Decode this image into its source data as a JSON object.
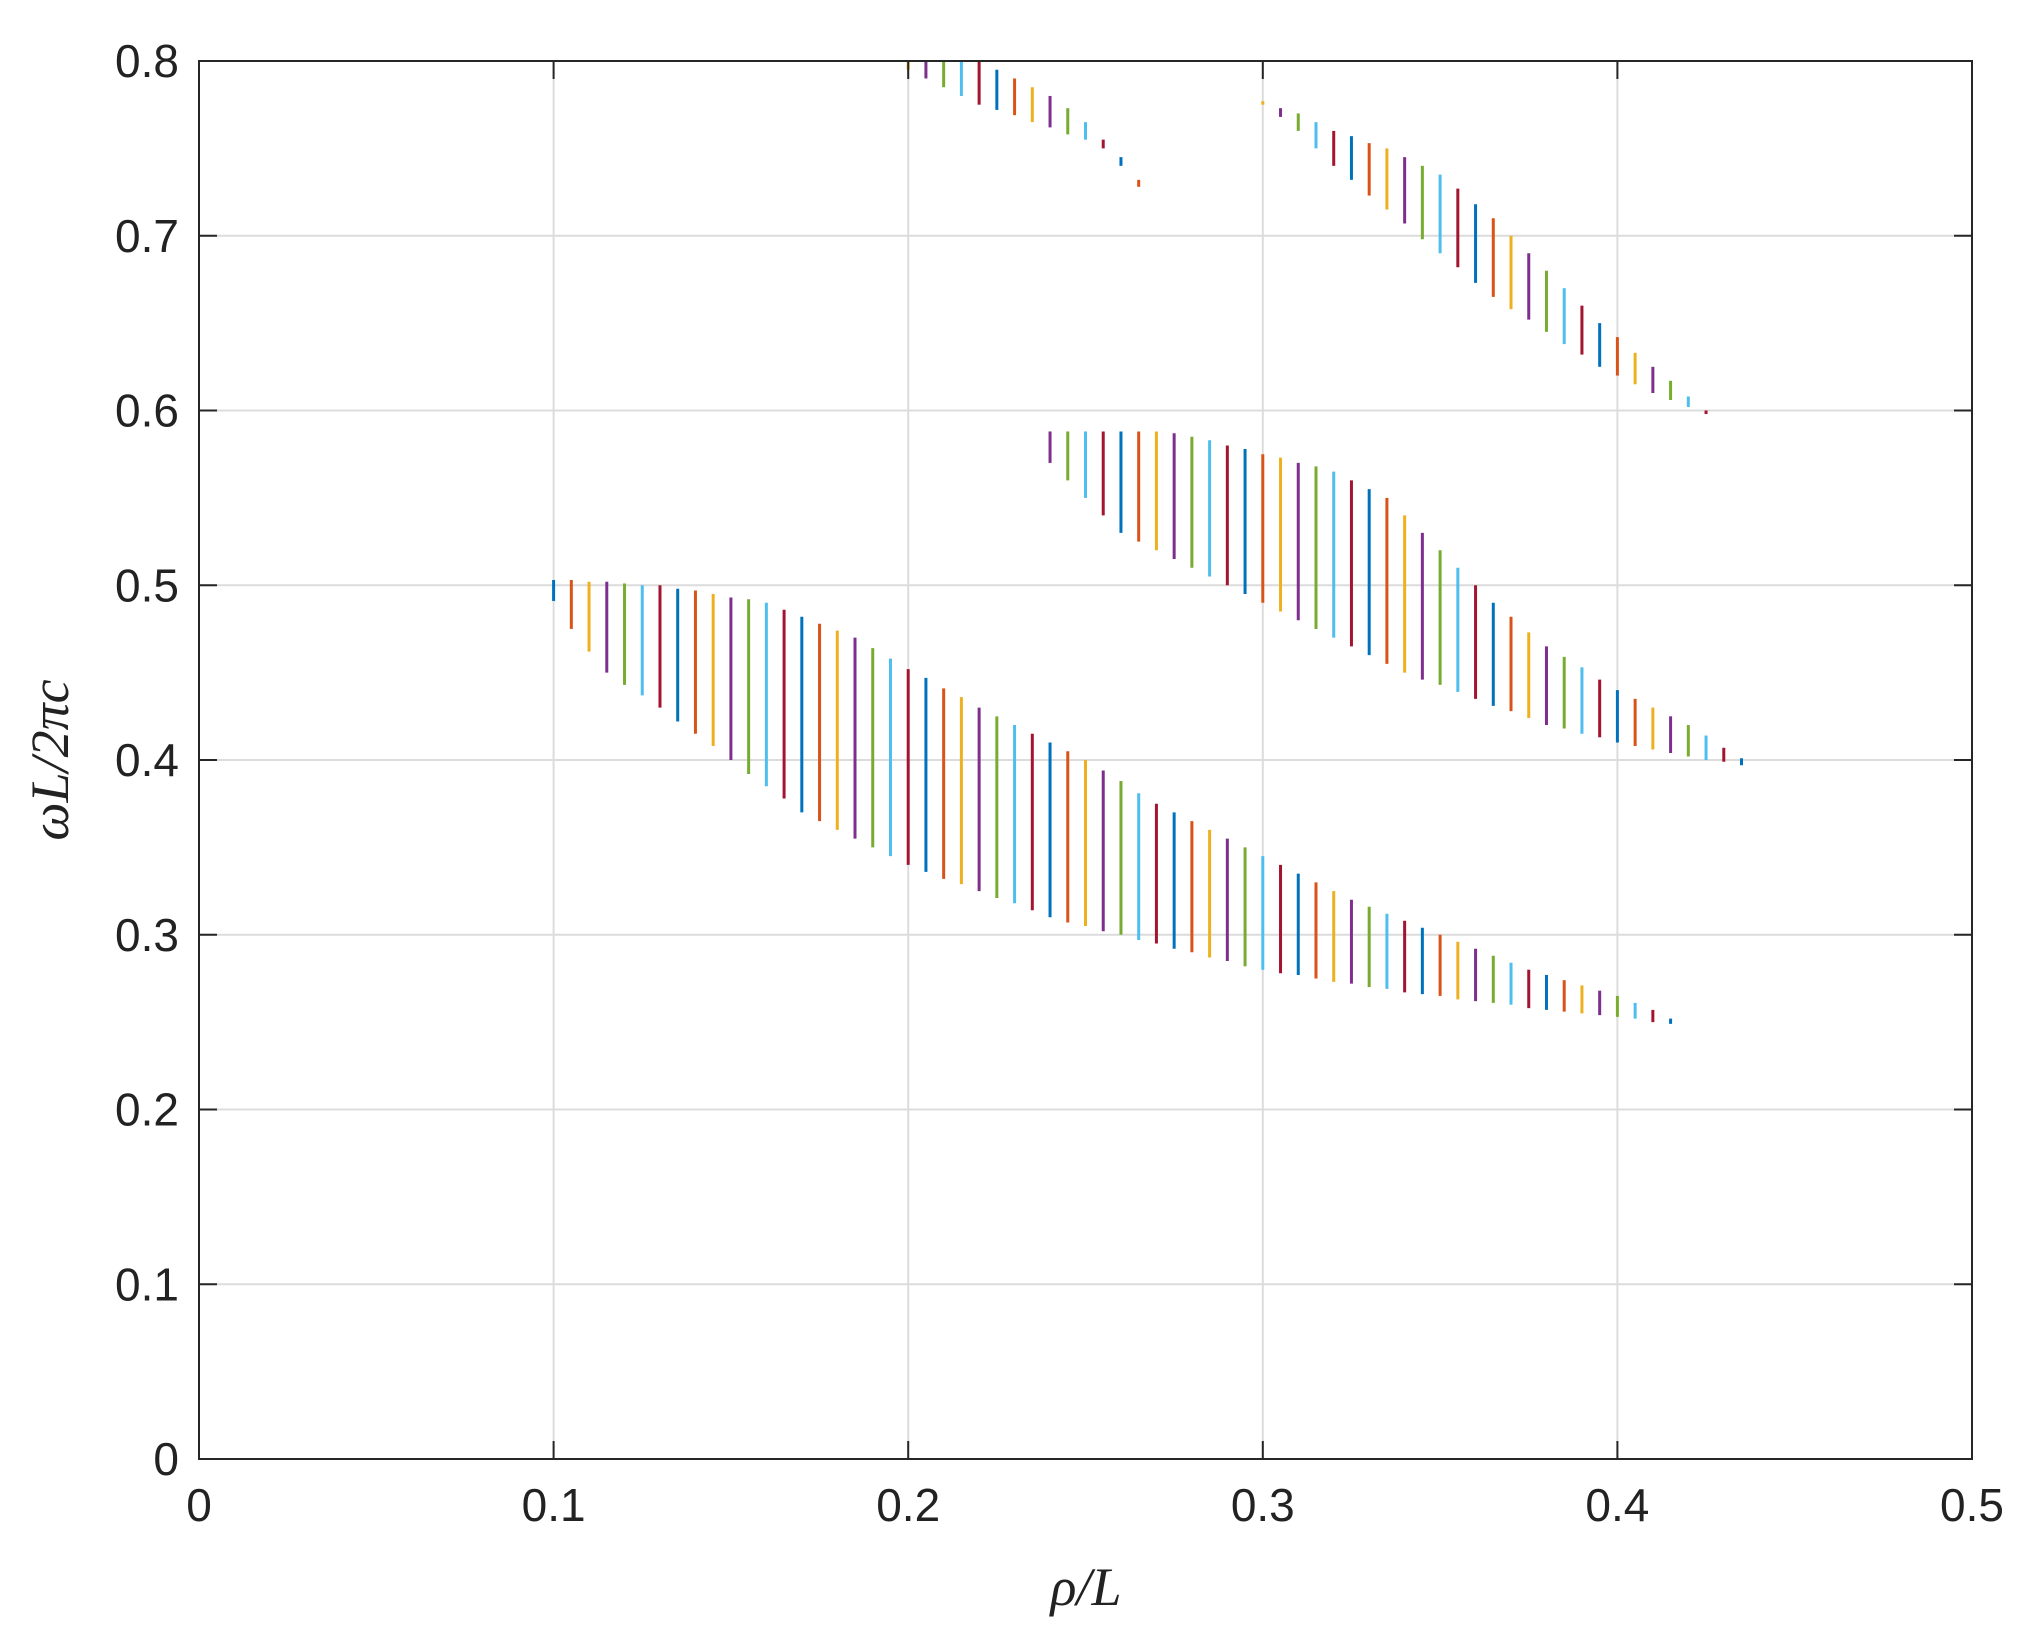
{
  "chart_data": {
    "type": "bandgap",
    "xlabel": "ρ/L",
    "ylabel": "ωL/2πc",
    "xlim": [
      0,
      0.5
    ],
    "ylim": [
      0,
      0.8
    ],
    "xticks": [
      0,
      0.1,
      0.2,
      0.3,
      0.4,
      0.5
    ],
    "yticks": [
      0,
      0.1,
      0.2,
      0.3,
      0.4,
      0.5,
      0.6,
      0.7,
      0.8
    ],
    "grid": true,
    "colors": [
      "#0072BD",
      "#D95319",
      "#EDB120",
      "#7E2F8E",
      "#77AC30",
      "#4DBEEE",
      "#A2142F"
    ],
    "series": [
      {
        "x": [
          0.1,
          0.105,
          0.11,
          0.115,
          0.12,
          0.125,
          0.13,
          0.135,
          0.14,
          0.145,
          0.15,
          0.155,
          0.16,
          0.165,
          0.17,
          0.175,
          0.18,
          0.185,
          0.19,
          0.195,
          0.2,
          0.205,
          0.21,
          0.215,
          0.22,
          0.225,
          0.23,
          0.235,
          0.24,
          0.245,
          0.25,
          0.255,
          0.26,
          0.265,
          0.27,
          0.275,
          0.28,
          0.285,
          0.29,
          0.295,
          0.3,
          0.305,
          0.31,
          0.315,
          0.32,
          0.325,
          0.33,
          0.335,
          0.34,
          0.345,
          0.35,
          0.355,
          0.36,
          0.365,
          0.37,
          0.375,
          0.38,
          0.385,
          0.39,
          0.395,
          0.4,
          0.405,
          0.41,
          0.415,
          0.42
        ],
        "high": [
          0.503,
          0.503,
          0.502,
          0.502,
          0.501,
          0.5,
          0.5,
          0.498,
          0.497,
          0.495,
          0.493,
          0.492,
          0.49,
          0.486,
          0.482,
          0.478,
          0.474,
          0.47,
          0.464,
          0.458,
          0.452,
          0.447,
          0.441,
          0.436,
          0.43,
          0.425,
          0.42,
          0.415,
          0.41,
          0.405,
          0.4,
          0.394,
          0.388,
          0.381,
          0.375,
          0.37,
          0.365,
          0.36,
          0.355,
          0.35,
          0.345,
          0.34,
          0.335,
          0.33,
          0.325,
          0.32,
          0.316,
          0.312,
          0.308,
          0.304,
          0.3,
          0.296,
          0.292,
          0.288,
          0.284,
          0.28,
          0.277,
          0.274,
          0.271,
          0.268,
          0.265,
          0.261,
          0.257,
          0.252,
          0.248
        ],
        "low": [
          0.491,
          0.475,
          0.462,
          0.45,
          0.443,
          0.437,
          0.43,
          0.422,
          0.415,
          0.408,
          0.4,
          0.392,
          0.385,
          0.378,
          0.37,
          0.365,
          0.36,
          0.355,
          0.35,
          0.345,
          0.34,
          0.336,
          0.332,
          0.329,
          0.325,
          0.321,
          0.318,
          0.314,
          0.31,
          0.307,
          0.305,
          0.302,
          0.3,
          0.297,
          0.295,
          0.292,
          0.29,
          0.287,
          0.285,
          0.282,
          0.28,
          0.278,
          0.277,
          0.275,
          0.273,
          0.272,
          0.27,
          0.269,
          0.267,
          0.266,
          0.265,
          0.263,
          0.262,
          0.261,
          0.26,
          0.258,
          0.257,
          0.256,
          0.255,
          0.254,
          0.253,
          0.252,
          0.25,
          0.249,
          0.248
        ]
      },
      {
        "x": [
          0.235,
          0.24,
          0.245,
          0.25,
          0.255,
          0.26,
          0.265,
          0.27,
          0.275,
          0.28,
          0.285,
          0.29,
          0.295,
          0.3,
          0.305,
          0.31,
          0.315,
          0.32,
          0.325,
          0.33,
          0.335,
          0.34,
          0.345,
          0.35,
          0.355,
          0.36,
          0.365,
          0.37,
          0.375,
          0.38,
          0.385,
          0.39,
          0.395,
          0.4,
          0.405,
          0.41,
          0.415,
          0.42,
          0.425,
          0.43,
          0.435,
          0.44
        ],
        "high": [
          0.588,
          0.588,
          0.588,
          0.588,
          0.588,
          0.588,
          0.588,
          0.588,
          0.587,
          0.585,
          0.583,
          0.58,
          0.578,
          0.575,
          0.573,
          0.57,
          0.568,
          0.565,
          0.56,
          0.555,
          0.55,
          0.54,
          0.53,
          0.52,
          0.51,
          0.5,
          0.49,
          0.482,
          0.473,
          0.465,
          0.459,
          0.453,
          0.446,
          0.44,
          0.435,
          0.43,
          0.425,
          0.42,
          0.414,
          0.407,
          0.401,
          0.395
        ],
        "low": [
          0.588,
          0.57,
          0.56,
          0.55,
          0.54,
          0.53,
          0.525,
          0.52,
          0.515,
          0.51,
          0.505,
          0.5,
          0.495,
          0.49,
          0.485,
          0.48,
          0.475,
          0.47,
          0.465,
          0.46,
          0.455,
          0.45,
          0.446,
          0.443,
          0.439,
          0.435,
          0.431,
          0.428,
          0.424,
          0.42,
          0.418,
          0.415,
          0.413,
          0.41,
          0.408,
          0.406,
          0.404,
          0.402,
          0.4,
          0.399,
          0.397,
          0.395
        ]
      },
      {
        "x": [
          0.2,
          0.205,
          0.21,
          0.215,
          0.22,
          0.225,
          0.23,
          0.235,
          0.24,
          0.245,
          0.25,
          0.255,
          0.26,
          0.265
        ],
        "high": [
          0.8,
          0.8,
          0.8,
          0.8,
          0.8,
          0.795,
          0.79,
          0.785,
          0.78,
          0.773,
          0.765,
          0.755,
          0.745,
          0.732
        ],
        "low": [
          0.795,
          0.79,
          0.785,
          0.78,
          0.775,
          0.772,
          0.769,
          0.765,
          0.762,
          0.758,
          0.755,
          0.75,
          0.74,
          0.728
        ]
      },
      {
        "x": [
          0.3,
          0.305,
          0.31,
          0.315,
          0.32,
          0.325,
          0.33,
          0.335,
          0.34,
          0.345,
          0.35,
          0.355,
          0.36,
          0.365,
          0.37,
          0.375,
          0.38,
          0.385,
          0.39,
          0.395,
          0.4,
          0.405,
          0.41,
          0.415,
          0.42,
          0.425,
          0.43
        ],
        "high": [
          0.777,
          0.773,
          0.77,
          0.765,
          0.76,
          0.757,
          0.753,
          0.75,
          0.745,
          0.74,
          0.735,
          0.727,
          0.718,
          0.71,
          0.7,
          0.69,
          0.68,
          0.67,
          0.66,
          0.65,
          0.642,
          0.633,
          0.625,
          0.617,
          0.608,
          0.6,
          0.595
        ],
        "low": [
          0.775,
          0.768,
          0.76,
          0.75,
          0.74,
          0.732,
          0.723,
          0.715,
          0.707,
          0.698,
          0.69,
          0.682,
          0.673,
          0.665,
          0.658,
          0.652,
          0.645,
          0.638,
          0.632,
          0.625,
          0.62,
          0.615,
          0.61,
          0.606,
          0.602,
          0.598,
          0.595
        ]
      }
    ]
  }
}
